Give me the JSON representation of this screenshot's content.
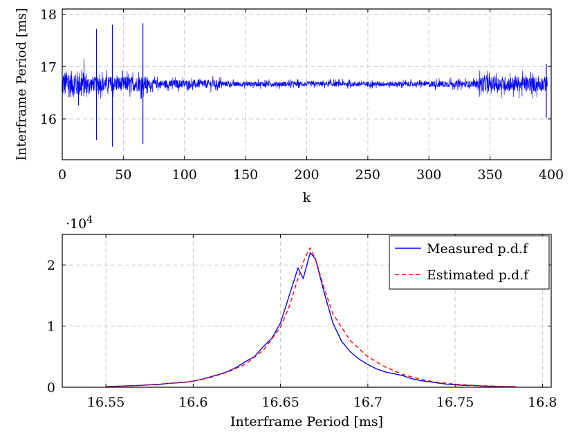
{
  "chart_data": [
    {
      "type": "line",
      "xlabel": "k",
      "ylabel": "Interframe Period [ms]",
      "xlim": [
        0,
        400
      ],
      "ylim": [
        15.22,
        18.1
      ],
      "xticks": [
        0,
        50,
        100,
        150,
        200,
        250,
        300,
        350,
        400
      ],
      "yticks": [
        16,
        17,
        18
      ],
      "grid": true,
      "series": [
        {
          "color": "#0000ff",
          "description": "dense noisy trace around 16.667 ms with spikes",
          "baseline": 16.667,
          "spikes": [
            {
              "x": 28,
              "high": 17.72,
              "low": 15.6
            },
            {
              "x": 41,
              "high": 17.8,
              "low": 15.47
            },
            {
              "x": 66,
              "high": 17.83,
              "low": 15.52
            },
            {
              "x": 396,
              "high": 17.05,
              "low": 16.02
            }
          ]
        }
      ]
    },
    {
      "type": "line",
      "xlabel": "Interframe Period [ms]",
      "ylabel": "",
      "scale_label": "·10",
      "scale_exp": "4",
      "xlim": [
        16.525,
        16.805
      ],
      "ylim": [
        0,
        2.5
      ],
      "xticks": [
        16.55,
        16.6,
        16.65,
        16.7,
        16.75,
        16.8
      ],
      "xtick_labels": [
        "16.55",
        "16.6",
        "16.65",
        "16.7",
        "16.75",
        "16.8"
      ],
      "yticks": [
        0,
        1,
        2
      ],
      "grid": true,
      "legend_position": "top-right",
      "series": [
        {
          "name": "Measured p.d.f",
          "color": "#0000ff",
          "style": "solid",
          "x": [
            16.55,
            16.555,
            16.56,
            16.565,
            16.57,
            16.575,
            16.58,
            16.585,
            16.59,
            16.595,
            16.6,
            16.605,
            16.61,
            16.615,
            16.62,
            16.625,
            16.63,
            16.635,
            16.64,
            16.645,
            16.65,
            16.655,
            16.66,
            16.663,
            16.667,
            16.67,
            16.675,
            16.68,
            16.685,
            16.69,
            16.695,
            16.7,
            16.705,
            16.71,
            16.715,
            16.72,
            16.725,
            16.73,
            16.735,
            16.74,
            16.745,
            16.75,
            16.755,
            16.76,
            16.765,
            16.77,
            16.775,
            16.78,
            16.785
          ],
          "values": [
            0.01,
            0.015,
            0.02,
            0.025,
            0.03,
            0.04,
            0.04,
            0.06,
            0.07,
            0.08,
            0.1,
            0.13,
            0.17,
            0.21,
            0.26,
            0.33,
            0.42,
            0.5,
            0.66,
            0.8,
            1.05,
            1.5,
            1.95,
            1.78,
            2.2,
            2.1,
            1.55,
            1.05,
            0.75,
            0.58,
            0.46,
            0.37,
            0.3,
            0.25,
            0.22,
            0.19,
            0.14,
            0.11,
            0.09,
            0.07,
            0.05,
            0.04,
            0.03,
            0.03,
            0.02,
            0.015,
            0.01,
            0.01,
            0.005
          ]
        },
        {
          "name": "Estimated p.d.f",
          "color": "#ff0000",
          "style": "dashed",
          "x": [
            16.55,
            16.56,
            16.57,
            16.58,
            16.59,
            16.6,
            16.61,
            16.62,
            16.63,
            16.64,
            16.65,
            16.655,
            16.66,
            16.664,
            16.667,
            16.67,
            16.675,
            16.68,
            16.69,
            16.7,
            16.71,
            16.72,
            16.73,
            16.74,
            16.75,
            16.76,
            16.77,
            16.78,
            16.785
          ],
          "values": [
            0.01,
            0.02,
            0.03,
            0.05,
            0.07,
            0.1,
            0.16,
            0.25,
            0.38,
            0.6,
            0.98,
            1.32,
            1.78,
            2.12,
            2.28,
            2.1,
            1.62,
            1.2,
            0.76,
            0.5,
            0.33,
            0.21,
            0.13,
            0.08,
            0.05,
            0.03,
            0.02,
            0.01,
            0.01
          ]
        }
      ]
    }
  ]
}
